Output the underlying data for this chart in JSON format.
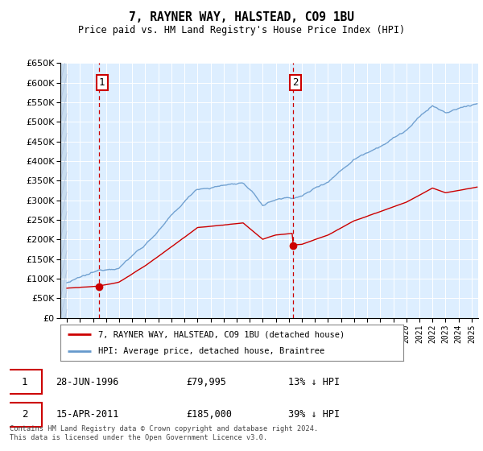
{
  "title": "7, RAYNER WAY, HALSTEAD, CO9 1BU",
  "subtitle": "Price paid vs. HM Land Registry's House Price Index (HPI)",
  "legend_line1": "7, RAYNER WAY, HALSTEAD, CO9 1BU (detached house)",
  "legend_line2": "HPI: Average price, detached house, Braintree",
  "annotation1_date": "28-JUN-1996",
  "annotation1_price": "£79,995",
  "annotation1_hpi": "13% ↓ HPI",
  "annotation2_date": "15-APR-2011",
  "annotation2_price": "£185,000",
  "annotation2_hpi": "39% ↓ HPI",
  "footer": "Contains HM Land Registry data © Crown copyright and database right 2024.\nThis data is licensed under the Open Government Licence v3.0.",
  "sale1_year": 1996.49,
  "sale1_price": 79995,
  "sale2_year": 2011.29,
  "sale2_price": 185000,
  "ylim_min": 0,
  "ylim_max": 650000,
  "xlim_min": 1993.5,
  "xlim_max": 2025.5,
  "plot_bg_color": "#ddeeff",
  "grid_color": "#ffffff",
  "red_line_color": "#cc0000",
  "blue_line_color": "#6699cc",
  "vline_color": "#cc0000",
  "box_color": "#cc0000"
}
